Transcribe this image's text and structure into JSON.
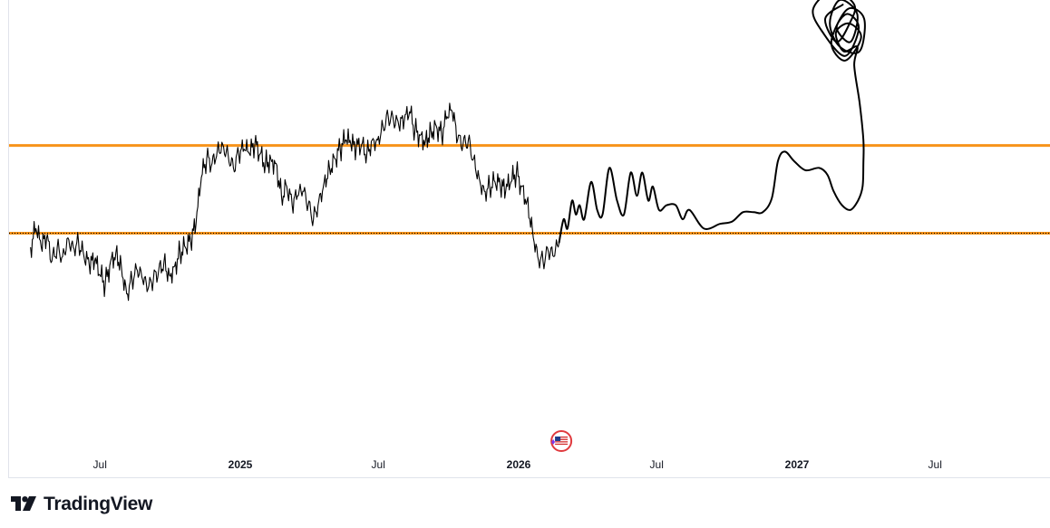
{
  "branding": {
    "name": "TradingView"
  },
  "colors": {
    "levels": "#f7931a",
    "price": "#000000",
    "axis_text": "#131722",
    "axis_border": "#e0e3eb"
  },
  "icons": {
    "event_marker": "us-flag-icon",
    "logo": "tradingview-logo-icon"
  },
  "chart_data": {
    "type": "line",
    "title": "",
    "xlabel": "",
    "ylabel": "",
    "x_tick_labels": [
      {
        "label": "Jul",
        "date": "2024-07",
        "bold": false
      },
      {
        "label": "2025",
        "date": "2025-01",
        "bold": true
      },
      {
        "label": "Jul",
        "date": "2025-07",
        "bold": false
      },
      {
        "label": "2026",
        "date": "2026-01",
        "bold": true
      },
      {
        "label": "Jul",
        "date": "2026-07",
        "bold": false
      },
      {
        "label": "2027",
        "date": "2027-01",
        "bold": true
      },
      {
        "label": "Jul",
        "date": "2027-07",
        "bold": false
      }
    ],
    "y_axis_visible": false,
    "grid": false,
    "legend": "none",
    "horizontal_levels": [
      {
        "name": "upper level",
        "position": 0.688
      },
      {
        "name": "lower level",
        "position": 0.5
      }
    ],
    "series": [
      {
        "kind": "price",
        "points": [
          [
            "2024-04-01",
            0.47
          ],
          [
            "2024-04-08",
            0.51
          ],
          [
            "2024-04-15",
            0.47
          ],
          [
            "2024-04-22",
            0.49
          ],
          [
            "2024-04-29",
            0.44
          ],
          [
            "2024-05-06",
            0.47
          ],
          [
            "2024-05-13",
            0.45
          ],
          [
            "2024-05-20",
            0.49
          ],
          [
            "2024-05-27",
            0.47
          ],
          [
            "2024-06-03",
            0.48
          ],
          [
            "2024-06-10",
            0.45
          ],
          [
            "2024-06-17",
            0.43
          ],
          [
            "2024-06-24",
            0.44
          ],
          [
            "2024-07-01",
            0.41
          ],
          [
            "2024-07-08",
            0.39
          ],
          [
            "2024-07-15",
            0.44
          ],
          [
            "2024-07-22",
            0.46
          ],
          [
            "2024-07-29",
            0.43
          ],
          [
            "2024-08-05",
            0.37
          ],
          [
            "2024-08-12",
            0.4
          ],
          [
            "2024-08-19",
            0.42
          ],
          [
            "2024-08-26",
            0.4
          ],
          [
            "2024-09-02",
            0.38
          ],
          [
            "2024-09-09",
            0.4
          ],
          [
            "2024-09-16",
            0.42
          ],
          [
            "2024-09-23",
            0.44
          ],
          [
            "2024-09-30",
            0.41
          ],
          [
            "2024-10-07",
            0.43
          ],
          [
            "2024-10-14",
            0.46
          ],
          [
            "2024-10-21",
            0.47
          ],
          [
            "2024-10-28",
            0.48
          ],
          [
            "2024-11-04",
            0.52
          ],
          [
            "2024-11-11",
            0.62
          ],
          [
            "2024-11-18",
            0.66
          ],
          [
            "2024-11-25",
            0.65
          ],
          [
            "2024-12-02",
            0.68
          ],
          [
            "2024-12-09",
            0.69
          ],
          [
            "2024-12-16",
            0.67
          ],
          [
            "2024-12-23",
            0.64
          ],
          [
            "2024-12-30",
            0.67
          ],
          [
            "2025-01-06",
            0.68
          ],
          [
            "2025-01-13",
            0.67
          ],
          [
            "2025-01-20",
            0.69
          ],
          [
            "2025-01-27",
            0.67
          ],
          [
            "2025-02-03",
            0.65
          ],
          [
            "2025-02-10",
            0.66
          ],
          [
            "2025-02-17",
            0.65
          ],
          [
            "2025-02-24",
            0.58
          ],
          [
            "2025-03-03",
            0.6
          ],
          [
            "2025-03-10",
            0.56
          ],
          [
            "2025-03-17",
            0.58
          ],
          [
            "2025-03-24",
            0.59
          ],
          [
            "2025-03-31",
            0.56
          ],
          [
            "2025-04-07",
            0.53
          ],
          [
            "2025-04-14",
            0.57
          ],
          [
            "2025-04-21",
            0.61
          ],
          [
            "2025-04-28",
            0.64
          ],
          [
            "2025-05-05",
            0.66
          ],
          [
            "2025-05-12",
            0.68
          ],
          [
            "2025-05-19",
            0.7
          ],
          [
            "2025-05-26",
            0.69
          ],
          [
            "2025-06-02",
            0.68
          ],
          [
            "2025-06-09",
            0.69
          ],
          [
            "2025-06-16",
            0.67
          ],
          [
            "2025-06-23",
            0.7
          ],
          [
            "2025-06-30",
            0.7
          ],
          [
            "2025-07-07",
            0.73
          ],
          [
            "2025-07-14",
            0.75
          ],
          [
            "2025-07-21",
            0.74
          ],
          [
            "2025-07-28",
            0.73
          ],
          [
            "2025-08-04",
            0.74
          ],
          [
            "2025-08-11",
            0.76
          ],
          [
            "2025-08-18",
            0.72
          ],
          [
            "2025-08-25",
            0.71
          ],
          [
            "2025-09-01",
            0.7
          ],
          [
            "2025-09-08",
            0.72
          ],
          [
            "2025-09-15",
            0.73
          ],
          [
            "2025-09-22",
            0.71
          ],
          [
            "2025-09-29",
            0.75
          ],
          [
            "2025-10-06",
            0.76
          ],
          [
            "2025-10-13",
            0.7
          ],
          [
            "2025-10-20",
            0.69
          ],
          [
            "2025-10-27",
            0.7
          ],
          [
            "2025-11-03",
            0.66
          ],
          [
            "2025-11-10",
            0.62
          ],
          [
            "2025-11-17",
            0.59
          ],
          [
            "2025-11-24",
            0.6
          ],
          [
            "2025-12-01",
            0.61
          ],
          [
            "2025-12-08",
            0.6
          ],
          [
            "2025-12-15",
            0.59
          ],
          [
            "2025-12-22",
            0.61
          ],
          [
            "2025-12-29",
            0.63
          ],
          [
            "2026-01-05",
            0.6
          ],
          [
            "2026-01-12",
            0.57
          ],
          [
            "2026-01-19",
            0.51
          ],
          [
            "2026-01-26",
            0.45
          ],
          [
            "2026-02-02",
            0.44
          ],
          [
            "2026-02-09",
            0.46
          ],
          [
            "2026-02-16",
            0.45
          ],
          [
            "2026-02-23",
            0.48
          ]
        ]
      },
      {
        "kind": "projection",
        "points": [
          [
            "2026-02-23",
            0.48
          ],
          [
            "2026-03-01",
            0.53
          ],
          [
            "2026-03-06",
            0.51
          ],
          [
            "2026-03-12",
            0.57
          ],
          [
            "2026-03-17",
            0.54
          ],
          [
            "2026-03-22",
            0.56
          ],
          [
            "2026-03-28",
            0.53
          ],
          [
            "2026-04-06",
            0.61
          ],
          [
            "2026-04-14",
            0.55
          ],
          [
            "2026-04-21",
            0.54
          ],
          [
            "2026-04-30",
            0.64
          ],
          [
            "2026-05-10",
            0.57
          ],
          [
            "2026-05-19",
            0.54
          ],
          [
            "2026-05-28",
            0.63
          ],
          [
            "2026-06-05",
            0.58
          ],
          [
            "2026-06-12",
            0.63
          ],
          [
            "2026-06-20",
            0.57
          ],
          [
            "2026-06-26",
            0.6
          ],
          [
            "2026-07-04",
            0.55
          ],
          [
            "2026-07-14",
            0.56
          ],
          [
            "2026-07-26",
            0.56
          ],
          [
            "2026-08-04",
            0.53
          ],
          [
            "2026-08-13",
            0.55
          ],
          [
            "2026-09-01",
            0.51
          ],
          [
            "2026-09-22",
            0.52
          ],
          [
            "2026-10-08",
            0.525
          ],
          [
            "2026-10-22",
            0.545
          ],
          [
            "2026-11-05",
            0.545
          ],
          [
            "2026-11-17",
            0.545
          ],
          [
            "2026-11-29",
            0.575
          ],
          [
            "2026-12-07",
            0.655
          ],
          [
            "2026-12-16",
            0.675
          ],
          [
            "2026-12-28",
            0.655
          ],
          [
            "2027-01-12",
            0.635
          ],
          [
            "2027-01-30",
            0.64
          ],
          [
            "2027-02-10",
            0.625
          ],
          [
            "2027-02-18",
            0.59
          ],
          [
            "2027-03-01",
            0.56
          ],
          [
            "2027-03-12",
            0.55
          ],
          [
            "2027-03-22",
            0.57
          ],
          [
            "2027-03-28",
            0.6
          ],
          [
            "2027-03-29",
            0.65
          ],
          [
            "2027-03-29",
            0.7
          ],
          [
            "2027-03-24",
            0.78
          ],
          [
            "2027-03-17",
            0.86
          ],
          [
            "2027-03-21",
            0.9
          ],
          [
            "2027-03-03",
            0.89
          ],
          [
            "2027-02-21",
            0.93
          ],
          [
            "2027-03-10",
            0.95
          ],
          [
            "2027-03-26",
            0.92
          ],
          [
            "2027-03-05",
            0.87
          ],
          [
            "2027-02-15",
            0.91
          ],
          [
            "2027-03-08",
            0.98
          ],
          [
            "2027-03-30",
            0.96
          ],
          [
            "2027-03-24",
            0.89
          ],
          [
            "2027-02-26",
            0.9
          ],
          [
            "2027-02-13",
            0.95
          ],
          [
            "2027-02-26",
            1.0
          ],
          [
            "2027-03-21",
            0.97
          ],
          [
            "2027-03-12",
            0.91
          ],
          [
            "2027-02-22",
            0.94
          ],
          [
            "2027-03-08",
            0.97
          ],
          [
            "2027-03-23",
            0.94
          ],
          [
            "2027-03-05",
            0.88
          ],
          [
            "2027-02-04",
            0.93
          ],
          [
            "2027-01-22",
            0.98
          ],
          [
            "2027-02-17",
            1.02
          ],
          [
            "2027-03-17",
            0.99
          ],
          [
            "2027-03-11",
            0.95
          ],
          [
            "2027-02-22",
            0.91
          ],
          [
            "2027-02-07",
            0.96
          ],
          [
            "2027-03-02",
            0.99
          ]
        ]
      }
    ],
    "event_markers": [
      {
        "date": "2026-02-26",
        "label": "US",
        "icon": "us-flag-icon"
      }
    ]
  }
}
